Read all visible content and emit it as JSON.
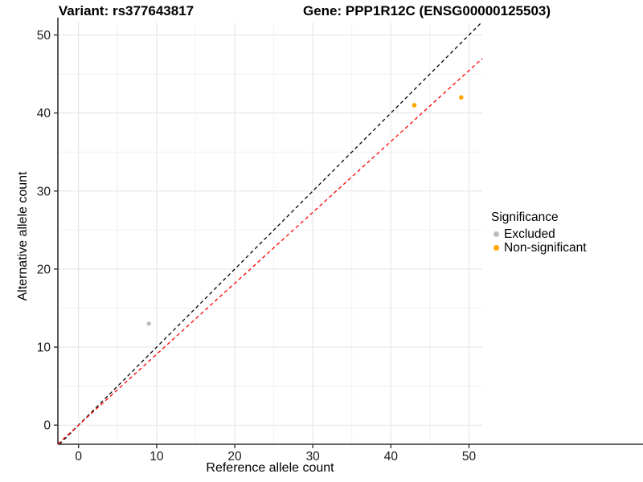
{
  "header": {
    "variant_title": "Variant: rs377643817",
    "gene_title": "Gene: PPP1R12C (ENSG00000125503)"
  },
  "chart_data": {
    "type": "scatter",
    "title": "Variant: rs377643817 — Gene: PPP1R12C (ENSG00000125503)",
    "xlabel": "Reference allele count",
    "ylabel": "Alternative allele count",
    "xlim": [
      -2.65,
      51.7
    ],
    "ylim": [
      -2.45,
      51.6
    ],
    "x_ticks": [
      0,
      10,
      20,
      30,
      40,
      50
    ],
    "y_ticks": [
      0,
      10,
      20,
      30,
      40,
      50
    ],
    "x_minor_ticks": [
      5,
      15,
      25,
      35,
      45
    ],
    "y_minor_ticks": [
      5,
      15,
      25,
      35,
      45
    ],
    "grid": true,
    "series": [
      {
        "name": "Excluded",
        "color": "#BEBEBE",
        "points": [
          {
            "x": 9,
            "y": 13
          }
        ]
      },
      {
        "name": "Non-significant",
        "color": "#FFA500",
        "points": [
          {
            "x": 43,
            "y": 41
          },
          {
            "x": 49,
            "y": 42
          }
        ]
      }
    ],
    "lines": [
      {
        "name": "identity-line",
        "color": "#000000",
        "style": "dashed",
        "slope": 1.0,
        "intercept": 0
      },
      {
        "name": "fit-line",
        "color": "#FF0000",
        "style": "dashed",
        "slope": 0.909,
        "intercept": 0
      }
    ],
    "legend": {
      "title": "Significance",
      "position": "right",
      "entries": [
        {
          "label": "Excluded",
          "color": "#BEBEBE"
        },
        {
          "label": "Non-significant",
          "color": "#FFA500"
        }
      ]
    },
    "colors": {
      "grid_major": "#E3E3E3",
      "grid_minor": "#F1F1F1",
      "axis_line_y": "#222222",
      "axis_line_x": "#666666",
      "tick_mark": "#333333",
      "tick_label": "#1a1a1a"
    }
  }
}
